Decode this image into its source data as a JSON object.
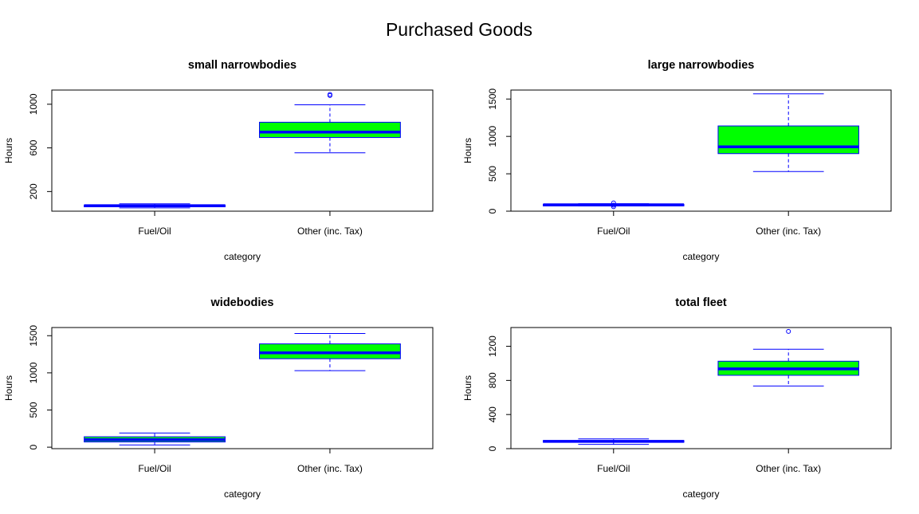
{
  "title": "Purchased Goods",
  "colors": {
    "box_fill": "#00ff00",
    "box_line": "#0000ff",
    "axis": "#000000",
    "background": "#ffffff"
  },
  "chart_data": [
    {
      "type": "boxplot",
      "title": "small narrowbodies",
      "xlabel": "category",
      "ylabel": "Hours",
      "categories": [
        "Fuel/Oil",
        "Other (inc. Tax)"
      ],
      "ylim": [
        20,
        1130
      ],
      "yticks": [
        200,
        600,
        1000
      ],
      "boxes": [
        {
          "category": "Fuel/Oil",
          "whisker_low": 50,
          "q1": 60,
          "median": 70,
          "q3": 76,
          "whisker_high": 88,
          "outliers": []
        },
        {
          "category": "Other (inc. Tax)",
          "whisker_low": 555,
          "q1": 695,
          "median": 745,
          "q3": 835,
          "whisker_high": 995,
          "outliers": [
            1080,
            1090
          ]
        }
      ]
    },
    {
      "type": "boxplot",
      "title": "large narrowbodies",
      "xlabel": "category",
      "ylabel": "Hours",
      "categories": [
        "Fuel/Oil",
        "Other (inc. Tax)"
      ],
      "ylim": [
        0,
        1620
      ],
      "yticks": [
        0,
        500,
        1000,
        1500
      ],
      "boxes": [
        {
          "category": "Fuel/Oil",
          "whisker_low": 70,
          "q1": 78,
          "median": 85,
          "q3": 92,
          "whisker_high": 100,
          "outliers": [
            60,
            80,
            110
          ]
        },
        {
          "category": "Other (inc. Tax)",
          "whisker_low": 530,
          "q1": 770,
          "median": 860,
          "q3": 1140,
          "whisker_high": 1570,
          "outliers": []
        }
      ]
    },
    {
      "type": "boxplot",
      "title": "widebodies",
      "xlabel": "category",
      "ylabel": "Hours",
      "categories": [
        "Fuel/Oil",
        "Other (inc. Tax)"
      ],
      "ylim": [
        -20,
        1610
      ],
      "yticks": [
        0,
        500,
        1000,
        1500
      ],
      "boxes": [
        {
          "category": "Fuel/Oil",
          "whisker_low": 30,
          "q1": 70,
          "median": 100,
          "q3": 140,
          "whisker_high": 190,
          "outliers": []
        },
        {
          "category": "Other (inc. Tax)",
          "whisker_low": 1030,
          "q1": 1190,
          "median": 1270,
          "q3": 1390,
          "whisker_high": 1530,
          "outliers": []
        }
      ]
    },
    {
      "type": "boxplot",
      "title": "total fleet",
      "xlabel": "category",
      "ylabel": "Hours",
      "categories": [
        "Fuel/Oil",
        "Other (inc. Tax)"
      ],
      "ylim": [
        0,
        1420
      ],
      "yticks": [
        0,
        400,
        800,
        1200
      ],
      "boxes": [
        {
          "category": "Fuel/Oil",
          "whisker_low": 50,
          "q1": 75,
          "median": 85,
          "q3": 95,
          "whisker_high": 115,
          "outliers": []
        },
        {
          "category": "Other (inc. Tax)",
          "whisker_low": 735,
          "q1": 860,
          "median": 935,
          "q3": 1025,
          "whisker_high": 1165,
          "outliers": [
            1375
          ]
        }
      ]
    }
  ]
}
